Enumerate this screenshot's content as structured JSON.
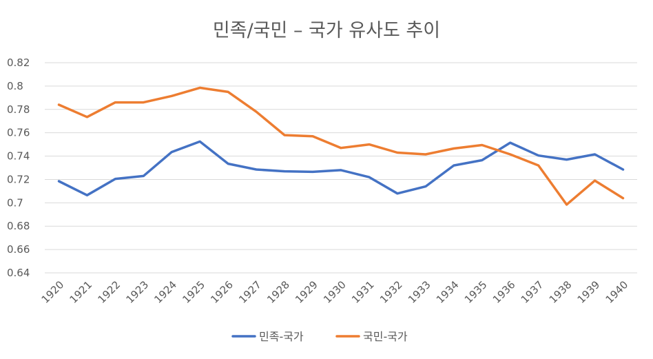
{
  "chart_data": {
    "type": "line",
    "title": "민족/국민 – 국가 유사도 추이",
    "xlabel": "",
    "ylabel": "",
    "categories": [
      "1920",
      "1921",
      "1922",
      "1923",
      "1924",
      "1925",
      "1926",
      "1927",
      "1928",
      "1929",
      "1930",
      "1931",
      "1932",
      "1933",
      "1934",
      "1935",
      "1936",
      "1937",
      "1938",
      "1939",
      "1940"
    ],
    "ylim": [
      0.64,
      0.82
    ],
    "yticks": [
      "0.64",
      "0.66",
      "0.68",
      "0.7",
      "0.72",
      "0.74",
      "0.76",
      "0.78",
      "0.8",
      "0.82"
    ],
    "grid": true,
    "legend": "bottom",
    "series": [
      {
        "name": "민족-국가",
        "color": "#4472C4",
        "values": [
          0.7185,
          0.7065,
          0.7205,
          0.723,
          0.7435,
          0.7525,
          0.7335,
          0.7285,
          0.727,
          0.7265,
          0.728,
          0.722,
          0.708,
          0.714,
          0.732,
          0.7365,
          0.7515,
          0.7405,
          0.737,
          0.7415,
          0.7285
        ]
      },
      {
        "name": "국민-국가",
        "color": "#ED7D31",
        "values": [
          0.784,
          0.7735,
          0.786,
          0.786,
          0.7915,
          0.7985,
          0.795,
          0.778,
          0.758,
          0.757,
          0.747,
          0.75,
          0.743,
          0.7415,
          0.7465,
          0.7495,
          0.7415,
          0.732,
          0.6985,
          0.719,
          0.704
        ]
      }
    ]
  }
}
